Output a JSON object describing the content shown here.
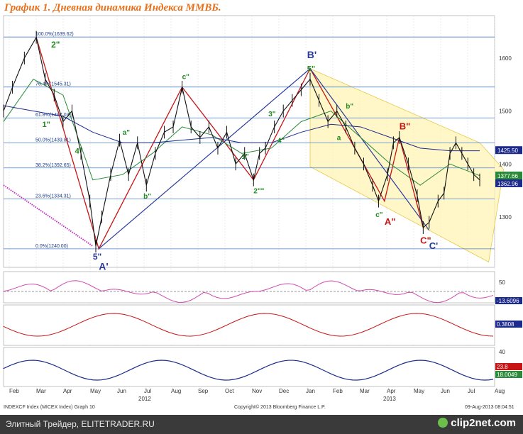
{
  "title": "График 1.   Дневная динамика Индекса ММВБ.",
  "colors": {
    "price_ema_short": "#2a8a3a",
    "price_ema_long": "#1c2a8c",
    "channel_fill": "#fff3b0",
    "wave_red": "#c81414",
    "wave_blue": "#2a3a9a",
    "wave_green": "#1f8a1f",
    "fib_line": "#4a7fd0"
  },
  "chart_data": {
    "type": "line",
    "symbol": "INDEXCF Index (MICEX Index)",
    "y_axis": {
      "ticks": [
        1300,
        1400,
        1500,
        1600
      ],
      "ylim": [
        1205,
        1680
      ]
    },
    "x_axis": {
      "months": [
        "Feb",
        "Mar",
        "Apr",
        "May",
        "Jun",
        "Jul",
        "Aug",
        "Sep",
        "Oct",
        "Nov",
        "Dec",
        "Jan",
        "Feb",
        "Mar",
        "Apr",
        "May",
        "Jun",
        "Jul",
        "Aug"
      ],
      "years": [
        "2012",
        "2013"
      ]
    },
    "fib_levels": [
      {
        "label": "100.0%(1639.62)",
        "value": 1639.62
      },
      {
        "label": "76.4%(1545.31)",
        "value": 1545.31
      },
      {
        "label": "61.8%(1487.03)",
        "value": 1487.03
      },
      {
        "label": "50.0%(1439.81)",
        "value": 1439.81
      },
      {
        "label": "38.2%(1392.65)",
        "value": 1392.65
      },
      {
        "label": "23.6%(1334.31)",
        "value": 1334.31
      },
      {
        "label": "0.0%(1240.00)",
        "value": 1240.0
      }
    ],
    "right_labels": [
      {
        "text": "1425.50",
        "value": 1425.5,
        "color": "#1c2a8c"
      },
      {
        "text": "1377.66",
        "value": 1377.66,
        "color": "#2a8a3a"
      },
      {
        "text": "1362.96",
        "value": 1362.96,
        "color": "#1c2a8c"
      }
    ],
    "price": [
      {
        "i": 0,
        "v": 1500
      },
      {
        "i": 3,
        "v": 1545
      },
      {
        "i": 7,
        "v": 1600
      },
      {
        "i": 11,
        "v": 1639
      },
      {
        "i": 14,
        "v": 1560
      },
      {
        "i": 17,
        "v": 1530
      },
      {
        "i": 20,
        "v": 1480
      },
      {
        "i": 23,
        "v": 1500
      },
      {
        "i": 26,
        "v": 1420
      },
      {
        "i": 29,
        "v": 1330
      },
      {
        "i": 31,
        "v": 1245
      },
      {
        "i": 33,
        "v": 1300
      },
      {
        "i": 36,
        "v": 1380
      },
      {
        "i": 39,
        "v": 1445
      },
      {
        "i": 42,
        "v": 1380
      },
      {
        "i": 45,
        "v": 1440
      },
      {
        "i": 48,
        "v": 1360
      },
      {
        "i": 51,
        "v": 1420
      },
      {
        "i": 54,
        "v": 1460
      },
      {
        "i": 57,
        "v": 1470
      },
      {
        "i": 60,
        "v": 1545
      },
      {
        "i": 63,
        "v": 1470
      },
      {
        "i": 66,
        "v": 1450
      },
      {
        "i": 69,
        "v": 1470
      },
      {
        "i": 72,
        "v": 1430
      },
      {
        "i": 75,
        "v": 1460
      },
      {
        "i": 78,
        "v": 1400
      },
      {
        "i": 81,
        "v": 1420
      },
      {
        "i": 84,
        "v": 1370
      },
      {
        "i": 86,
        "v": 1420
      },
      {
        "i": 88,
        "v": 1430
      },
      {
        "i": 91,
        "v": 1470
      },
      {
        "i": 94,
        "v": 1500
      },
      {
        "i": 97,
        "v": 1520
      },
      {
        "i": 100,
        "v": 1540
      },
      {
        "i": 103,
        "v": 1560
      },
      {
        "i": 106,
        "v": 1520
      },
      {
        "i": 109,
        "v": 1480
      },
      {
        "i": 112,
        "v": 1500
      },
      {
        "i": 115,
        "v": 1470
      },
      {
        "i": 118,
        "v": 1430
      },
      {
        "i": 121,
        "v": 1400
      },
      {
        "i": 124,
        "v": 1360
      },
      {
        "i": 126,
        "v": 1330
      },
      {
        "i": 129,
        "v": 1380
      },
      {
        "i": 131,
        "v": 1440
      },
      {
        "i": 133,
        "v": 1450
      },
      {
        "i": 136,
        "v": 1400
      },
      {
        "i": 139,
        "v": 1340
      },
      {
        "i": 141,
        "v": 1280
      },
      {
        "i": 143,
        "v": 1290
      },
      {
        "i": 146,
        "v": 1330
      },
      {
        "i": 148,
        "v": 1345
      },
      {
        "i": 150,
        "v": 1420
      },
      {
        "i": 152,
        "v": 1440
      },
      {
        "i": 154,
        "v": 1420
      },
      {
        "i": 156,
        "v": 1400
      },
      {
        "i": 158,
        "v": 1380
      },
      {
        "i": 160,
        "v": 1370
      }
    ],
    "ema_short": [
      {
        "i": 0,
        "v": 1480
      },
      {
        "i": 10,
        "v": 1560
      },
      {
        "i": 20,
        "v": 1530
      },
      {
        "i": 30,
        "v": 1370
      },
      {
        "i": 40,
        "v": 1380
      },
      {
        "i": 50,
        "v": 1420
      },
      {
        "i": 60,
        "v": 1470
      },
      {
        "i": 70,
        "v": 1455
      },
      {
        "i": 80,
        "v": 1420
      },
      {
        "i": 90,
        "v": 1430
      },
      {
        "i": 100,
        "v": 1480
      },
      {
        "i": 110,
        "v": 1500
      },
      {
        "i": 120,
        "v": 1450
      },
      {
        "i": 130,
        "v": 1400
      },
      {
        "i": 140,
        "v": 1360
      },
      {
        "i": 150,
        "v": 1400
      },
      {
        "i": 160,
        "v": 1378
      }
    ],
    "ema_long": [
      {
        "i": 0,
        "v": 1510
      },
      {
        "i": 10,
        "v": 1500
      },
      {
        "i": 20,
        "v": 1490
      },
      {
        "i": 30,
        "v": 1460
      },
      {
        "i": 40,
        "v": 1440
      },
      {
        "i": 50,
        "v": 1440
      },
      {
        "i": 60,
        "v": 1445
      },
      {
        "i": 70,
        "v": 1450
      },
      {
        "i": 80,
        "v": 1440
      },
      {
        "i": 90,
        "v": 1440
      },
      {
        "i": 100,
        "v": 1460
      },
      {
        "i": 110,
        "v": 1475
      },
      {
        "i": 120,
        "v": 1470
      },
      {
        "i": 130,
        "v": 1450
      },
      {
        "i": 140,
        "v": 1430
      },
      {
        "i": 150,
        "v": 1425
      },
      {
        "i": 160,
        "v": 1425
      }
    ],
    "wave_labels": [
      {
        "t": "2\"",
        "i": 16,
        "v": 1620,
        "color": "#1f8a1f",
        "size": 12
      },
      {
        "t": "1\"",
        "i": 13,
        "v": 1470,
        "color": "#1f8a1f",
        "size": 11
      },
      {
        "t": "4\"",
        "i": 24,
        "v": 1420,
        "color": "#1f8a1f",
        "size": 11
      },
      {
        "t": "5\"",
        "i": 30,
        "v": 1220,
        "color": "#2a3a9a",
        "size": 12
      },
      {
        "t": "A'",
        "i": 32,
        "v": 1200,
        "color": "#2a3a9a",
        "size": 14
      },
      {
        "t": "a\"",
        "i": 40,
        "v": 1455,
        "color": "#1f8a1f",
        "size": 10
      },
      {
        "t": "b\"",
        "i": 47,
        "v": 1335,
        "color": "#1f8a1f",
        "size": 10
      },
      {
        "t": "c\"",
        "i": 60,
        "v": 1560,
        "color": "#1f8a1f",
        "size": 10
      },
      {
        "t": "1\"",
        "i": 80,
        "v": 1410,
        "color": "#1f8a1f",
        "size": 10
      },
      {
        "t": "2\"\"",
        "i": 84,
        "v": 1345,
        "color": "#1f8a1f",
        "size": 10
      },
      {
        "t": "4\"",
        "i": 92,
        "v": 1440,
        "color": "#1f8a1f",
        "size": 10
      },
      {
        "t": "3\"",
        "i": 89,
        "v": 1490,
        "color": "#1f8a1f",
        "size": 10
      },
      {
        "t": "B'",
        "i": 102,
        "v": 1600,
        "color": "#2a3a9a",
        "size": 14
      },
      {
        "t": "5\"",
        "i": 102,
        "v": 1575,
        "color": "#1f8a1f",
        "size": 11
      },
      {
        "t": "b\"",
        "i": 115,
        "v": 1505,
        "color": "#1f8a1f",
        "size": 10
      },
      {
        "t": "a",
        "i": 112,
        "v": 1445,
        "color": "#1f8a1f",
        "size": 10
      },
      {
        "t": "c\"",
        "i": 125,
        "v": 1300,
        "color": "#1f8a1f",
        "size": 10
      },
      {
        "t": "A\"",
        "i": 128,
        "v": 1285,
        "color": "#c81414",
        "size": 13
      },
      {
        "t": "B\"",
        "i": 133,
        "v": 1465,
        "color": "#c81414",
        "size": 13
      },
      {
        "t": "C\"",
        "i": 140,
        "v": 1250,
        "color": "#c81414",
        "size": 13
      },
      {
        "t": "C'",
        "i": 143,
        "v": 1240,
        "color": "#2a3a9a",
        "size": 13
      }
    ]
  },
  "footer": {
    "left": "INDEXCF Index (MICEX Index) Graph 10",
    "mid": "Copyright© 2013 Bloomberg Finance L.P.",
    "right": "09-Aug-2013 08:04:51"
  },
  "indicators": {
    "p1": {
      "ticks": [
        "50"
      ],
      "label": "-13.6096"
    },
    "p2": {
      "label": "0.3808"
    },
    "p3": {
      "ticks": [
        "40"
      ],
      "label1": "23.8",
      "label2": "18.0049"
    }
  },
  "bottom_bar": {
    "site": "Элитный Трейдер, ELITETRADER.RU",
    "brand": "clip2net.com"
  }
}
